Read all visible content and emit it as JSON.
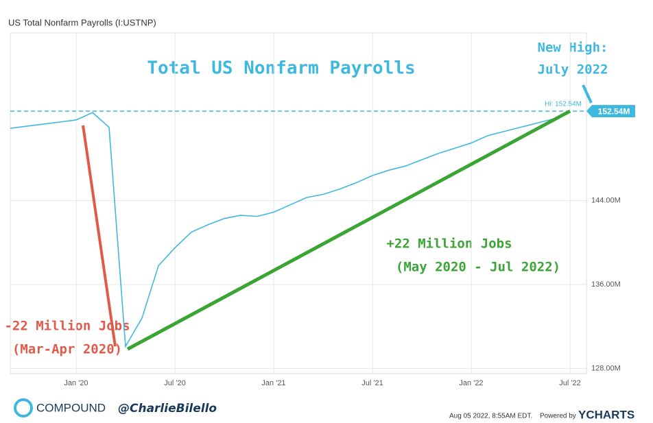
{
  "chart_data": {
    "type": "line",
    "header": "US Total Nonfarm Payrolls (I:USTNP)",
    "title": "Total US Nonfarm Payrolls",
    "annotations": {
      "new_high": [
        "New High:",
        "July 2022"
      ],
      "gain": [
        "+22 Million Jobs",
        "(May 2020 - Jul 2022)"
      ],
      "loss": [
        "-22 Million Jobs",
        "(Mar-Apr 2020)"
      ],
      "hi_label": "Hi: 152.54M",
      "last_badge": "152.54M"
    },
    "footer": {
      "brand": "COMPOUND",
      "handle": "@CharlieBilello",
      "timestamp": "Aug 05 2022, 8:55AM EDT.",
      "powered": "Powered by",
      "vendor": "YCHARTS"
    },
    "x": [
      "2019-09",
      "2019-10",
      "2019-11",
      "2019-12",
      "2020-01",
      "2020-02",
      "2020-03",
      "2020-04",
      "2020-05",
      "2020-06",
      "2020-07",
      "2020-08",
      "2020-09",
      "2020-10",
      "2020-11",
      "2020-12",
      "2021-01",
      "2021-02",
      "2021-03",
      "2021-04",
      "2021-05",
      "2021-06",
      "2021-07",
      "2021-08",
      "2021-09",
      "2021-10",
      "2021-11",
      "2021-12",
      "2022-01",
      "2022-02",
      "2022-03",
      "2022-04",
      "2022-05",
      "2022-06",
      "2022-07"
    ],
    "series": [
      {
        "name": "US Total Nonfarm Payrolls",
        "color": "#3fb8e0",
        "values": [
          150.9,
          151.1,
          151.3,
          151.5,
          151.7,
          152.4,
          151.0,
          130.1,
          132.8,
          137.8,
          139.5,
          141.0,
          141.7,
          142.3,
          142.6,
          142.5,
          142.9,
          143.6,
          144.3,
          144.6,
          145.1,
          145.7,
          146.4,
          146.9,
          147.3,
          147.9,
          148.5,
          149.0,
          149.5,
          150.2,
          150.6,
          151.0,
          151.4,
          151.8,
          152.54
        ]
      }
    ],
    "xlim": [
      "2019-09",
      "2022-08"
    ],
    "xticks": [
      {
        "value": "2020-01",
        "label": "Jan '20"
      },
      {
        "value": "2020-07",
        "label": "Jul '20"
      },
      {
        "value": "2021-01",
        "label": "Jan '21"
      },
      {
        "value": "2021-07",
        "label": "Jul '21"
      },
      {
        "value": "2022-01",
        "label": "Jan '22"
      },
      {
        "value": "2022-07",
        "label": "Jul '22"
      }
    ],
    "ylim": [
      127.5,
      160
    ],
    "yticks": [
      {
        "value": 128,
        "label": "128.00M"
      },
      {
        "value": 136,
        "label": "136.00M"
      },
      {
        "value": 144,
        "label": "144.00M"
      }
    ],
    "grid": true
  }
}
